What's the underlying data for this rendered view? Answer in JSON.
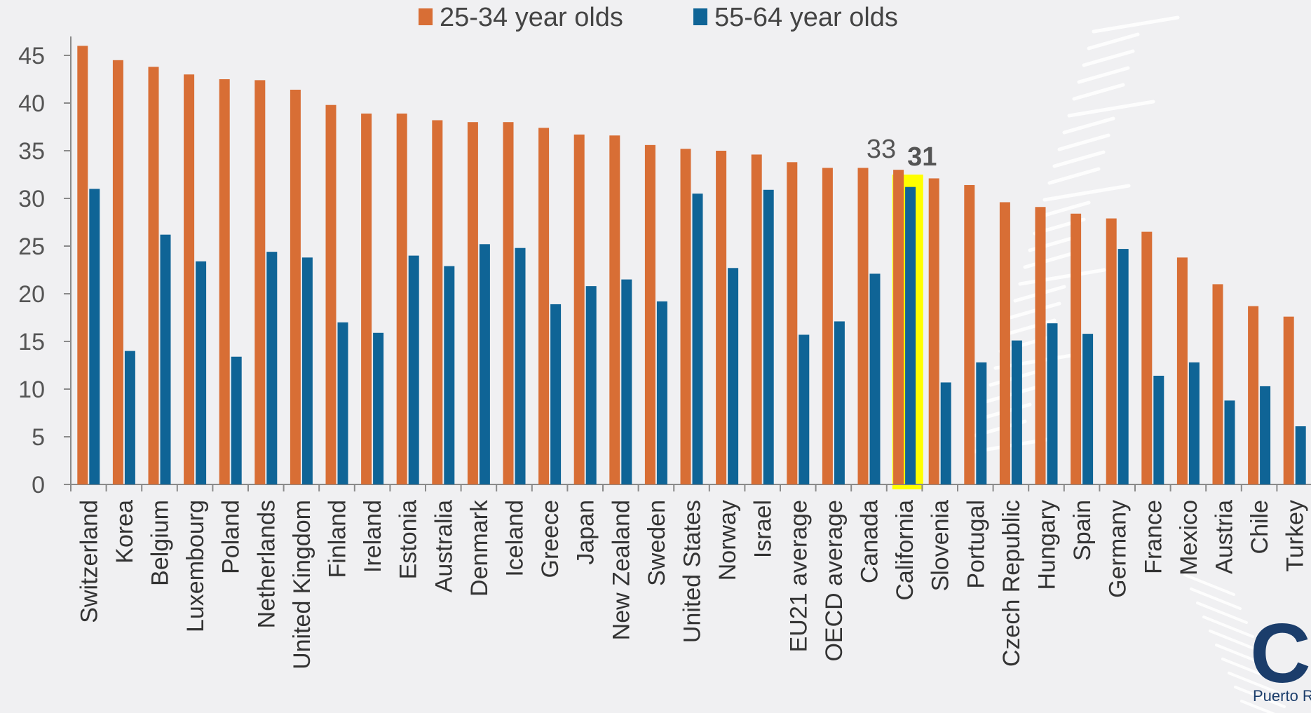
{
  "colors": {
    "series_25_34": "#d86e35",
    "series_55_64": "#0f6496",
    "highlight": "#ffff00",
    "axis": "#8a8a8a",
    "background": "#f0f0f2"
  },
  "logo": {
    "text": "CI",
    "subtitle": "Puerto R"
  },
  "chart_data": {
    "type": "bar",
    "title": "",
    "xlabel": "",
    "ylabel": "",
    "ylim": [
      0,
      47
    ],
    "yticks": [
      0,
      5,
      10,
      15,
      20,
      25,
      30,
      35,
      40,
      45
    ],
    "ytick_labels": [
      "0",
      "5",
      "10",
      "15",
      "20",
      "25",
      "30",
      "35",
      "40",
      "45"
    ],
    "grid": false,
    "legend_position": "top-center",
    "categories": [
      "Switzerland",
      "Korea",
      "Belgium",
      "Luxembourg",
      "Poland",
      "Netherlands",
      "United Kingdom",
      "Finland",
      "Ireland",
      "Estonia",
      "Australia",
      "Denmark",
      "Iceland",
      "Greece",
      "Japan",
      "New Zealand",
      "Sweden",
      "United States",
      "Norway",
      "Israel",
      "EU21 average",
      "OECD average",
      "Canada",
      "California",
      "Slovenia",
      "Portugal",
      "Czech Republic",
      "Hungary",
      "Spain",
      "Germany",
      "France",
      "Mexico",
      "Austria",
      "Chile",
      "Turkey"
    ],
    "series": [
      {
        "name": "25-34 year olds",
        "values": [
          46,
          44.5,
          43.8,
          43,
          42.5,
          42.4,
          41.4,
          39.8,
          38.9,
          38.9,
          38.2,
          38,
          38,
          37.4,
          36.7,
          36.6,
          35.6,
          35.2,
          35,
          34.6,
          33.8,
          33.2,
          33.2,
          33,
          32.1,
          31.4,
          29.6,
          29.1,
          28.4,
          27.9,
          26.5,
          23.8,
          21,
          18.7,
          17.6
        ]
      },
      {
        "name": "55-64 year olds",
        "values": [
          31,
          14,
          26.2,
          23.4,
          13.4,
          24.4,
          23.8,
          17,
          15.9,
          24,
          22.9,
          25.2,
          24.8,
          18.9,
          20.8,
          21.5,
          19.2,
          30.5,
          22.7,
          30.9,
          15.7,
          17.1,
          22.1,
          31.2,
          10.7,
          12.8,
          15.1,
          16.9,
          15.8,
          24.7,
          11.4,
          12.8,
          8.8,
          10.3,
          6.1
        ]
      }
    ],
    "highlight_category": "California",
    "annotations": [
      {
        "category": "California",
        "series": "25-34 year olds",
        "text": "33"
      },
      {
        "category": "California",
        "series": "55-64 year olds",
        "text": "31"
      }
    ]
  }
}
